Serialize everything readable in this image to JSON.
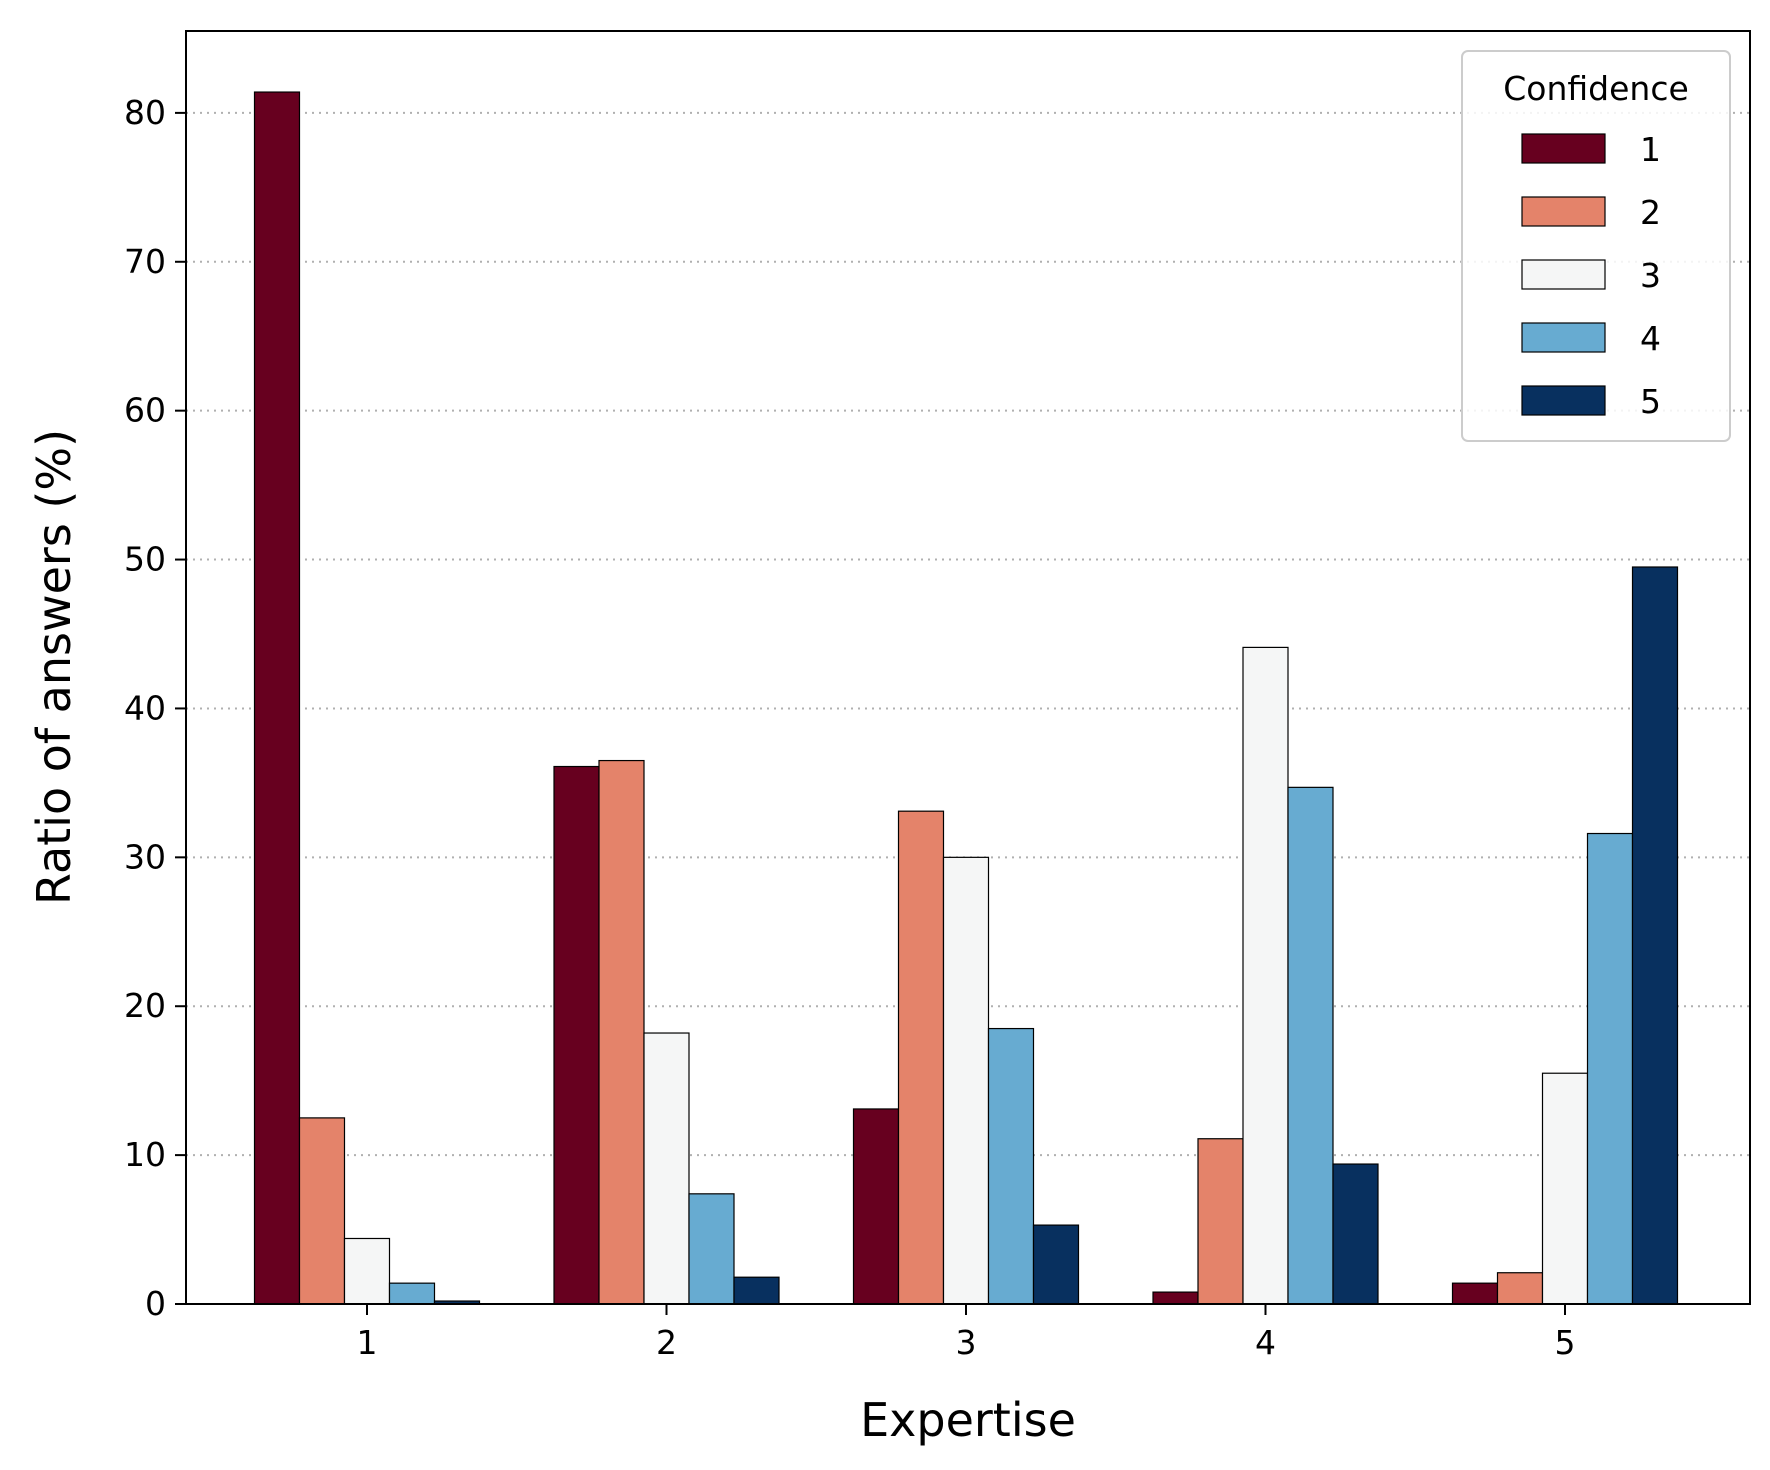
{
  "chart_data": {
    "type": "bar",
    "title": "",
    "xlabel": "Expertise",
    "ylabel": "Ratio of answers (%)",
    "categories": [
      "1",
      "2",
      "3",
      "4",
      "5"
    ],
    "ylim": [
      0,
      85.5
    ],
    "yticks": [
      0,
      10,
      20,
      30,
      40,
      50,
      60,
      70,
      80
    ],
    "grid": "y-dotted",
    "legend": {
      "title": "Confidence",
      "placement": "top-right"
    },
    "series": [
      {
        "name": "1",
        "color": "#67001f",
        "values": [
          81.4,
          36.1,
          13.1,
          0.8,
          1.4
        ]
      },
      {
        "name": "2",
        "color": "#e4836a",
        "values": [
          12.5,
          36.5,
          33.1,
          11.1,
          2.1
        ]
      },
      {
        "name": "3",
        "color": "#f5f6f6",
        "values": [
          4.4,
          18.2,
          30.0,
          44.1,
          15.5
        ]
      },
      {
        "name": "4",
        "color": "#67abd1",
        "values": [
          1.4,
          7.4,
          18.5,
          34.7,
          31.6
        ]
      },
      {
        "name": "5",
        "color": "#08305f",
        "values": [
          0.2,
          1.8,
          5.3,
          9.4,
          49.5
        ]
      }
    ]
  }
}
